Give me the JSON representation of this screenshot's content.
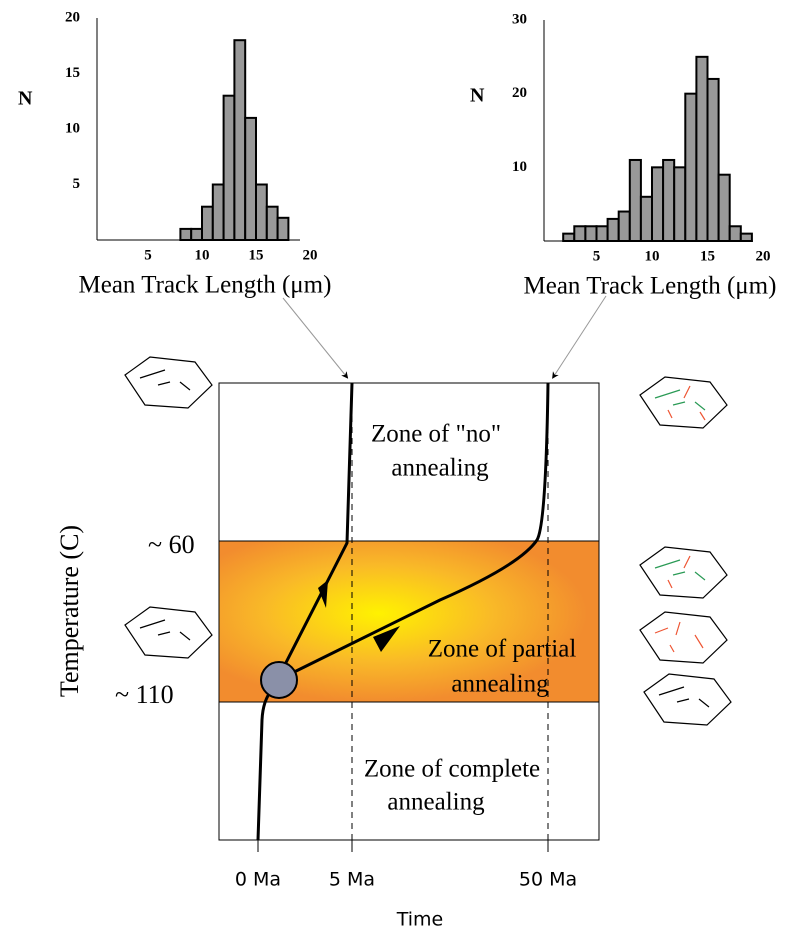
{
  "chart_data": [
    {
      "type": "histogram",
      "ylabel": "N",
      "xlabel": "Mean Track Length (μm)",
      "color": "#999999",
      "bins": [
        8,
        9,
        10,
        11,
        12,
        13,
        14,
        15,
        16,
        17,
        18
      ],
      "values": [
        1,
        1,
        3,
        5,
        13,
        18,
        11,
        5,
        3,
        2
      ],
      "xlim": [
        0,
        20
      ],
      "xticks": [
        5,
        10,
        15,
        20
      ],
      "ylim": [
        0,
        20
      ],
      "yticks": [
        5,
        10,
        15,
        20
      ],
      "grid": false
    },
    {
      "type": "histogram",
      "ylabel": "N",
      "xlabel": "Mean Track Length (μm)",
      "color": "#999999",
      "bins": [
        2,
        3,
        4,
        5,
        6,
        7,
        8,
        9,
        10,
        11,
        12,
        13,
        14,
        15,
        16,
        17,
        18,
        19
      ],
      "values": [
        1,
        2,
        2,
        2,
        3,
        4,
        11,
        6,
        10,
        11,
        10,
        20,
        25,
        22,
        9,
        2,
        1
      ],
      "xlim": [
        0,
        20
      ],
      "xticks": [
        5,
        10,
        15,
        20
      ],
      "ylim": [
        0,
        30
      ],
      "yticks": [
        10,
        20,
        30
      ],
      "grid": false
    }
  ],
  "diagram": {
    "y_axis_label": "Temperature (C)",
    "temperature_labels": [
      "~ 60",
      "~ 110"
    ],
    "zone_no_annealing": [
      "Zone of \"no\"",
      "annealing"
    ],
    "zone_partial_annealing": [
      "Zone of partial",
      "annealing"
    ],
    "zone_complete_annealing": [
      "Zone of complete",
      "annealing"
    ],
    "time_labels": [
      "0 Ma",
      "5 Ma",
      "50 Ma"
    ],
    "x_axis_label": "Time"
  }
}
